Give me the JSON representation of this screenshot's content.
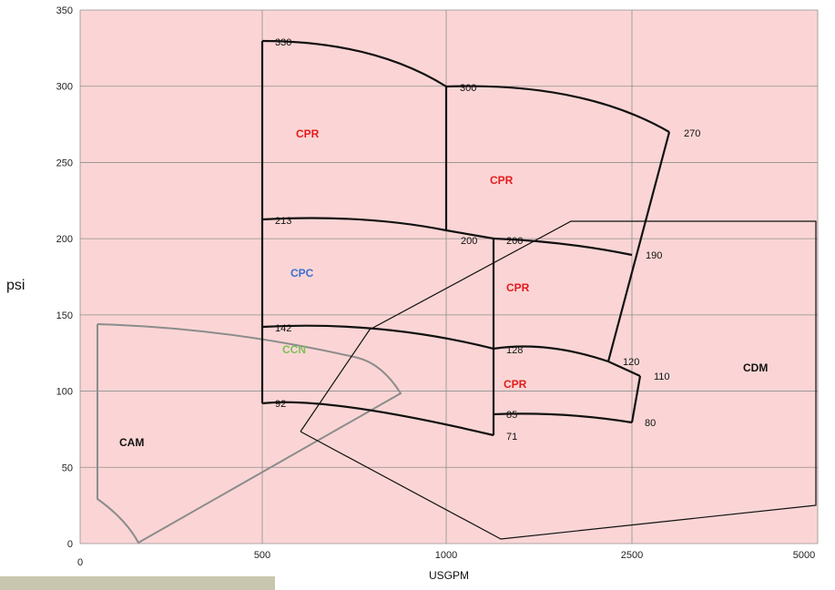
{
  "chart_data": {
    "type": "line",
    "xlabel": "USGPM",
    "ylabel": "psi",
    "ylim": [
      0,
      350
    ],
    "x_tick_labels": [
      "0",
      "500",
      "1000",
      "2500",
      "5000"
    ],
    "y_ticks": [
      0,
      50,
      100,
      150,
      200,
      250,
      300,
      350
    ],
    "grid": true,
    "background_color": "#fbd5d5",
    "point_labels": [
      {
        "text": "330",
        "x": 500,
        "y": 330
      },
      {
        "text": "300",
        "x": 1000,
        "y": 300
      },
      {
        "text": "270",
        "x": 2100,
        "y": 270
      },
      {
        "text": "213",
        "x": 500,
        "y": 213
      },
      {
        "text": "200",
        "x": 1000,
        "y": 200
      },
      {
        "text": "200",
        "x": 1125,
        "y": 200
      },
      {
        "text": "190",
        "x": 2500,
        "y": 190
      },
      {
        "text": "142",
        "x": 500,
        "y": 142
      },
      {
        "text": "128",
        "x": 1125,
        "y": 128
      },
      {
        "text": "120",
        "x": 2400,
        "y": 120
      },
      {
        "text": "110",
        "x": 2600,
        "y": 110
      },
      {
        "text": "92",
        "x": 500,
        "y": 92
      },
      {
        "text": "85",
        "x": 1125,
        "y": 85
      },
      {
        "text": "80",
        "x": 2500,
        "y": 80
      },
      {
        "text": "71",
        "x": 1125,
        "y": 71
      }
    ],
    "regions": [
      {
        "label": "CPR",
        "color": "#e41a1c"
      },
      {
        "label": "CPR",
        "color": "#e41a1c"
      },
      {
        "label": "CPR",
        "color": "#e41a1c"
      },
      {
        "label": "CPR",
        "color": "#e41a1c"
      },
      {
        "label": "CPC",
        "color": "#3b6fd4"
      },
      {
        "label": "CCN",
        "color": "#7cbf5a"
      },
      {
        "label": "CAM",
        "color": "#111111"
      },
      {
        "label": "CDM",
        "color": "#111111"
      }
    ]
  }
}
